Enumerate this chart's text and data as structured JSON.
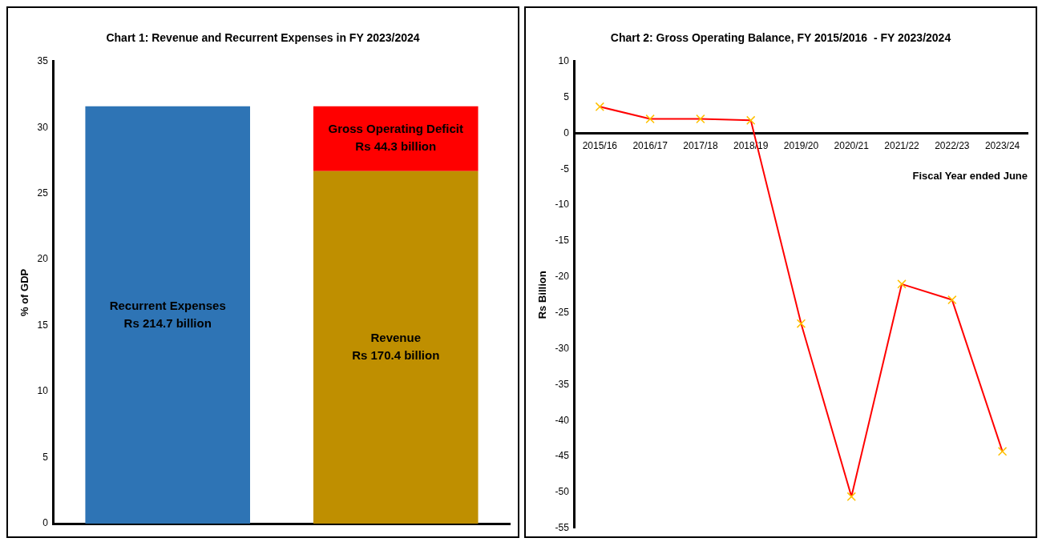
{
  "chart_data": [
    {
      "type": "bar",
      "title": "Chart 1: Revenue and Recurrent Expenses in FY 2023/2024",
      "ylabel": "% of GDP",
      "categories": [
        null,
        null
      ],
      "stacked": true,
      "grid": false,
      "legend": false,
      "tick_labels": "y",
      "ylim": [
        0,
        35
      ],
      "yticks": [
        0,
        5,
        10,
        15,
        20,
        25,
        30,
        35
      ],
      "series": [
        {
          "name": "Recurrent Expenses",
          "color": "#2e74b5",
          "values": [
            31.6,
            null
          ],
          "value_labels": [
            "Rs 214.7 billion",
            null
          ]
        },
        {
          "name": "Revenue",
          "color": "#bf8f00",
          "values": [
            null,
            26.7
          ],
          "value_labels": [
            null,
            "Rs 170.4 billion"
          ]
        },
        {
          "name": "Gross Operating Deficit",
          "color": "#ff0000",
          "values": [
            null,
            4.9
          ],
          "value_labels": [
            null,
            "Rs 44.3 billion"
          ]
        }
      ]
    },
    {
      "type": "line",
      "title": "Chart 2: Gross Operating Balance, FY 2015/2016  - FY 2023/2024",
      "ylabel": "Rs Billion",
      "xlabel": "Fiscal Year ended June",
      "categories": [
        "2015/16",
        "2016/17",
        "2017/18",
        "2018/19",
        "2019/20",
        "2020/21",
        "2021/22",
        "2022/23",
        "2023/24"
      ],
      "grid": false,
      "legend": false,
      "marker": "cross",
      "line_style": "solid",
      "ylim": [
        -55,
        10
      ],
      "yticks": [
        -55,
        -50,
        -45,
        -40,
        -35,
        -30,
        -25,
        -20,
        -15,
        -10,
        -5,
        0,
        5,
        10
      ],
      "series": [
        {
          "color": "#ff0000",
          "values": [
            3.7,
            2.0,
            2.0,
            1.8,
            -26.5,
            -50.6,
            -21.0,
            -23.2,
            -44.3
          ]
        }
      ]
    }
  ]
}
